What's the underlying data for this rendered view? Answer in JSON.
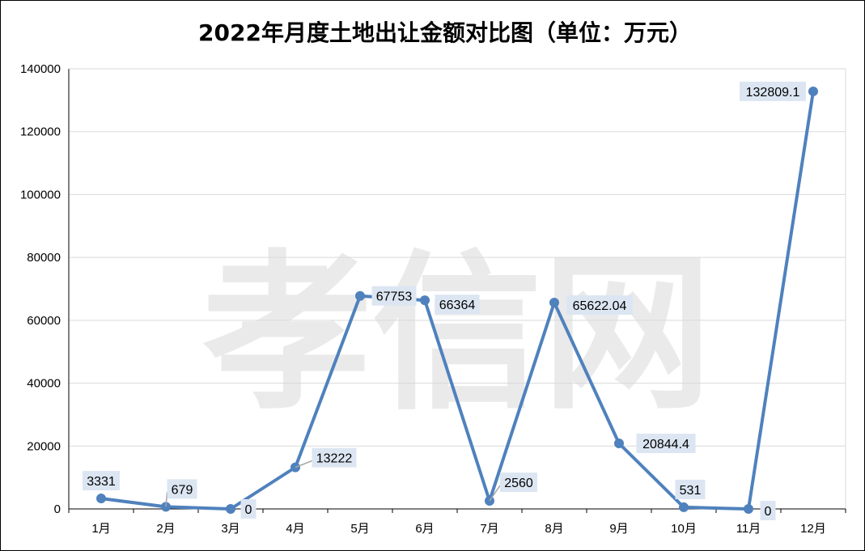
{
  "chart_data": {
    "type": "line",
    "title": "2022年月度土地出让金额对比图（单位：万元）",
    "watermark": "孝信网",
    "categories": [
      "1月",
      "2月",
      "3月",
      "4月",
      "5月",
      "6月",
      "7月",
      "8月",
      "9月",
      "10月",
      "11月",
      "12月"
    ],
    "series": [
      {
        "values": [
          3331,
          679,
          0,
          13222,
          67753,
          66364,
          2560,
          65622.04,
          20844.4,
          531,
          0,
          132809.1
        ],
        "color": "#4f81bd"
      }
    ],
    "data_labels": [
      "3331",
      "679",
      "0",
      "13222",
      "67753",
      "66364",
      "2560",
      "65622.04",
      "20844.4",
      "531",
      "0",
      "132809.1"
    ],
    "ylim": [
      0,
      140000
    ],
    "yticks": [
      "0",
      "20000",
      "40000",
      "60000",
      "80000",
      "100000",
      "120000",
      "140000"
    ],
    "grid": true,
    "legend": "none",
    "label_bg": "#dce6f2",
    "grid_color": "#d9d9d9"
  }
}
